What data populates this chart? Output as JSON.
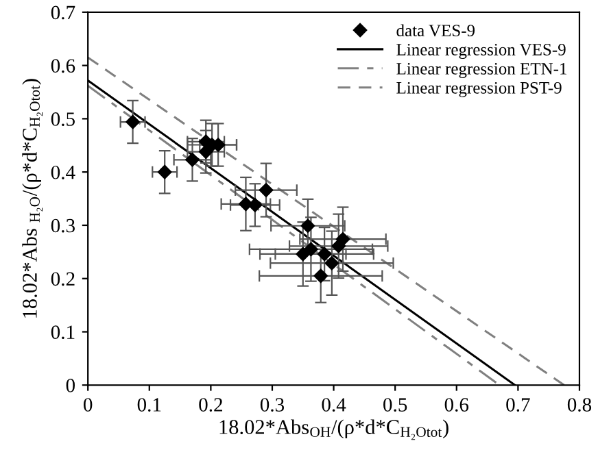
{
  "chart_data": {
    "type": "scatter",
    "xlabel": "18.02*Abs$_{OH}$/(ρ*d*C$_{H₂Otot}$)",
    "ylabel": "18.02*Abs $_{H₂O}$/(ρ*d*C$_{H₂Otot}$)",
    "xlim": [
      0,
      0.8
    ],
    "xticks": [
      0,
      0.1,
      0.2,
      0.3,
      0.4,
      0.5,
      0.6,
      0.7,
      0.8
    ],
    "ylim": [
      0,
      0.7
    ],
    "yticks": [
      0,
      0.1,
      0.2,
      0.3,
      0.4,
      0.5,
      0.6,
      0.7
    ],
    "grid": false,
    "legend": "top right",
    "series": [
      {
        "name": "data VES-9",
        "marker": "diamond",
        "color": "#000000",
        "x": [
          0.073,
          0.125,
          0.17,
          0.192,
          0.202,
          0.212,
          0.192,
          0.257,
          0.272,
          0.29,
          0.358,
          0.363,
          0.35,
          0.385,
          0.397,
          0.379,
          0.408,
          0.415
        ],
        "values": [
          0.494,
          0.4,
          0.423,
          0.457,
          0.451,
          0.451,
          0.438,
          0.34,
          0.338,
          0.366,
          0.299,
          0.255,
          0.246,
          0.246,
          0.229,
          0.205,
          0.261,
          0.274
        ],
        "errors": [
          0.04,
          0.04,
          0.04,
          0.04,
          0.04,
          0.04,
          0.04,
          0.05,
          0.04,
          0.05,
          0.05,
          0.06,
          0.06,
          0.05,
          0.06,
          0.05,
          0.06,
          0.06
        ],
        "xerrors": [
          0.02,
          0.02,
          0.03,
          0.03,
          0.04,
          0.03,
          0.03,
          0.04,
          0.04,
          0.05,
          0.06,
          0.1,
          0.07,
          0.08,
          0.1,
          0.1,
          0.08,
          0.07
        ]
      },
      {
        "name": "Linear regression VES-9",
        "type": "line",
        "line_style": "solid",
        "color": "#000000",
        "x": [
          0,
          0.695
        ],
        "values": [
          0.572,
          0
        ]
      },
      {
        "name": "Linear regression ETN-1",
        "type": "line",
        "line_style": "dashdot",
        "color": "#808080",
        "x": [
          0,
          0.67
        ],
        "values": [
          0.562,
          0
        ]
      },
      {
        "name": "Linear regression PST-9",
        "type": "line",
        "line_style": "dashed",
        "color": "#808080",
        "x": [
          0,
          0.775
        ],
        "values": [
          0.615,
          0
        ]
      }
    ]
  }
}
